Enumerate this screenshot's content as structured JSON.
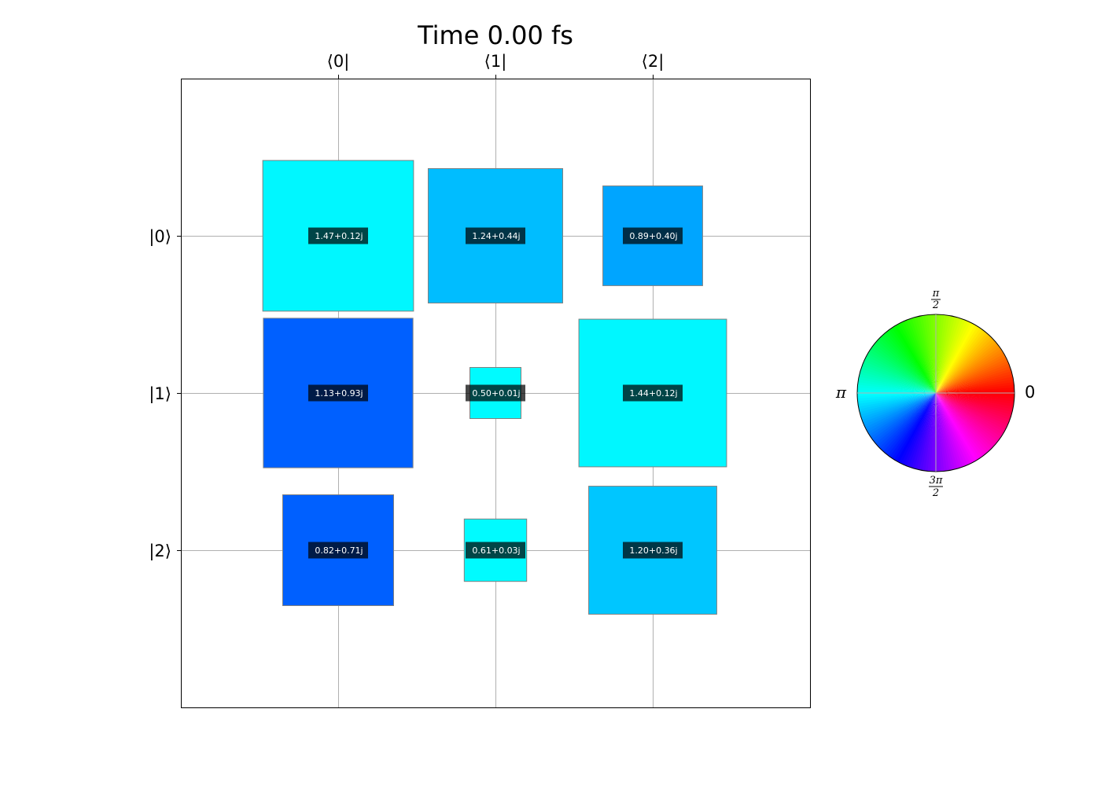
{
  "chart_data": {
    "type": "heatmap",
    "title": "Time  0.00 fs",
    "col_labels": [
      "⟨0|",
      "⟨1|",
      "⟨2|"
    ],
    "row_labels": [
      "|0⟩",
      "|1⟩",
      "|2⟩"
    ],
    "cells": [
      [
        {
          "label": "1.47+0.12j",
          "re": 1.47,
          "im": 0.12,
          "color": "#00f7ff"
        },
        {
          "label": "1.24+0.44j",
          "re": 1.24,
          "im": 0.44,
          "color": "#00bdff"
        },
        {
          "label": "0.89+0.40j",
          "re": 0.89,
          "im": 0.4,
          "color": "#00a5ff"
        }
      ],
      [
        {
          "label": "1.13+0.93j",
          "re": 1.13,
          "im": 0.93,
          "color": "#0060ff"
        },
        {
          "label": "0.50+0.01j",
          "re": 0.5,
          "im": 0.01,
          "color": "#00fbff"
        },
        {
          "label": "1.44+0.12j",
          "re": 1.44,
          "im": 0.12,
          "color": "#00f7ff"
        }
      ],
      [
        {
          "label": "0.82+0.71j",
          "re": 0.82,
          "im": 0.71,
          "color": "#0060ff"
        },
        {
          "label": "0.61+0.03j",
          "re": 0.61,
          "im": 0.03,
          "color": "#00fbff"
        },
        {
          "label": "1.20+0.36j",
          "re": 1.2,
          "im": 0.36,
          "color": "#00c6ff"
        }
      ]
    ],
    "grid": true,
    "phase_wheel": {
      "labels": {
        "zero": "0",
        "pi": "π",
        "half_pi_num": "π",
        "half_pi_den": "2",
        "three_half_pi_num": "3π",
        "three_half_pi_den": "2"
      },
      "placement": "right"
    }
  }
}
